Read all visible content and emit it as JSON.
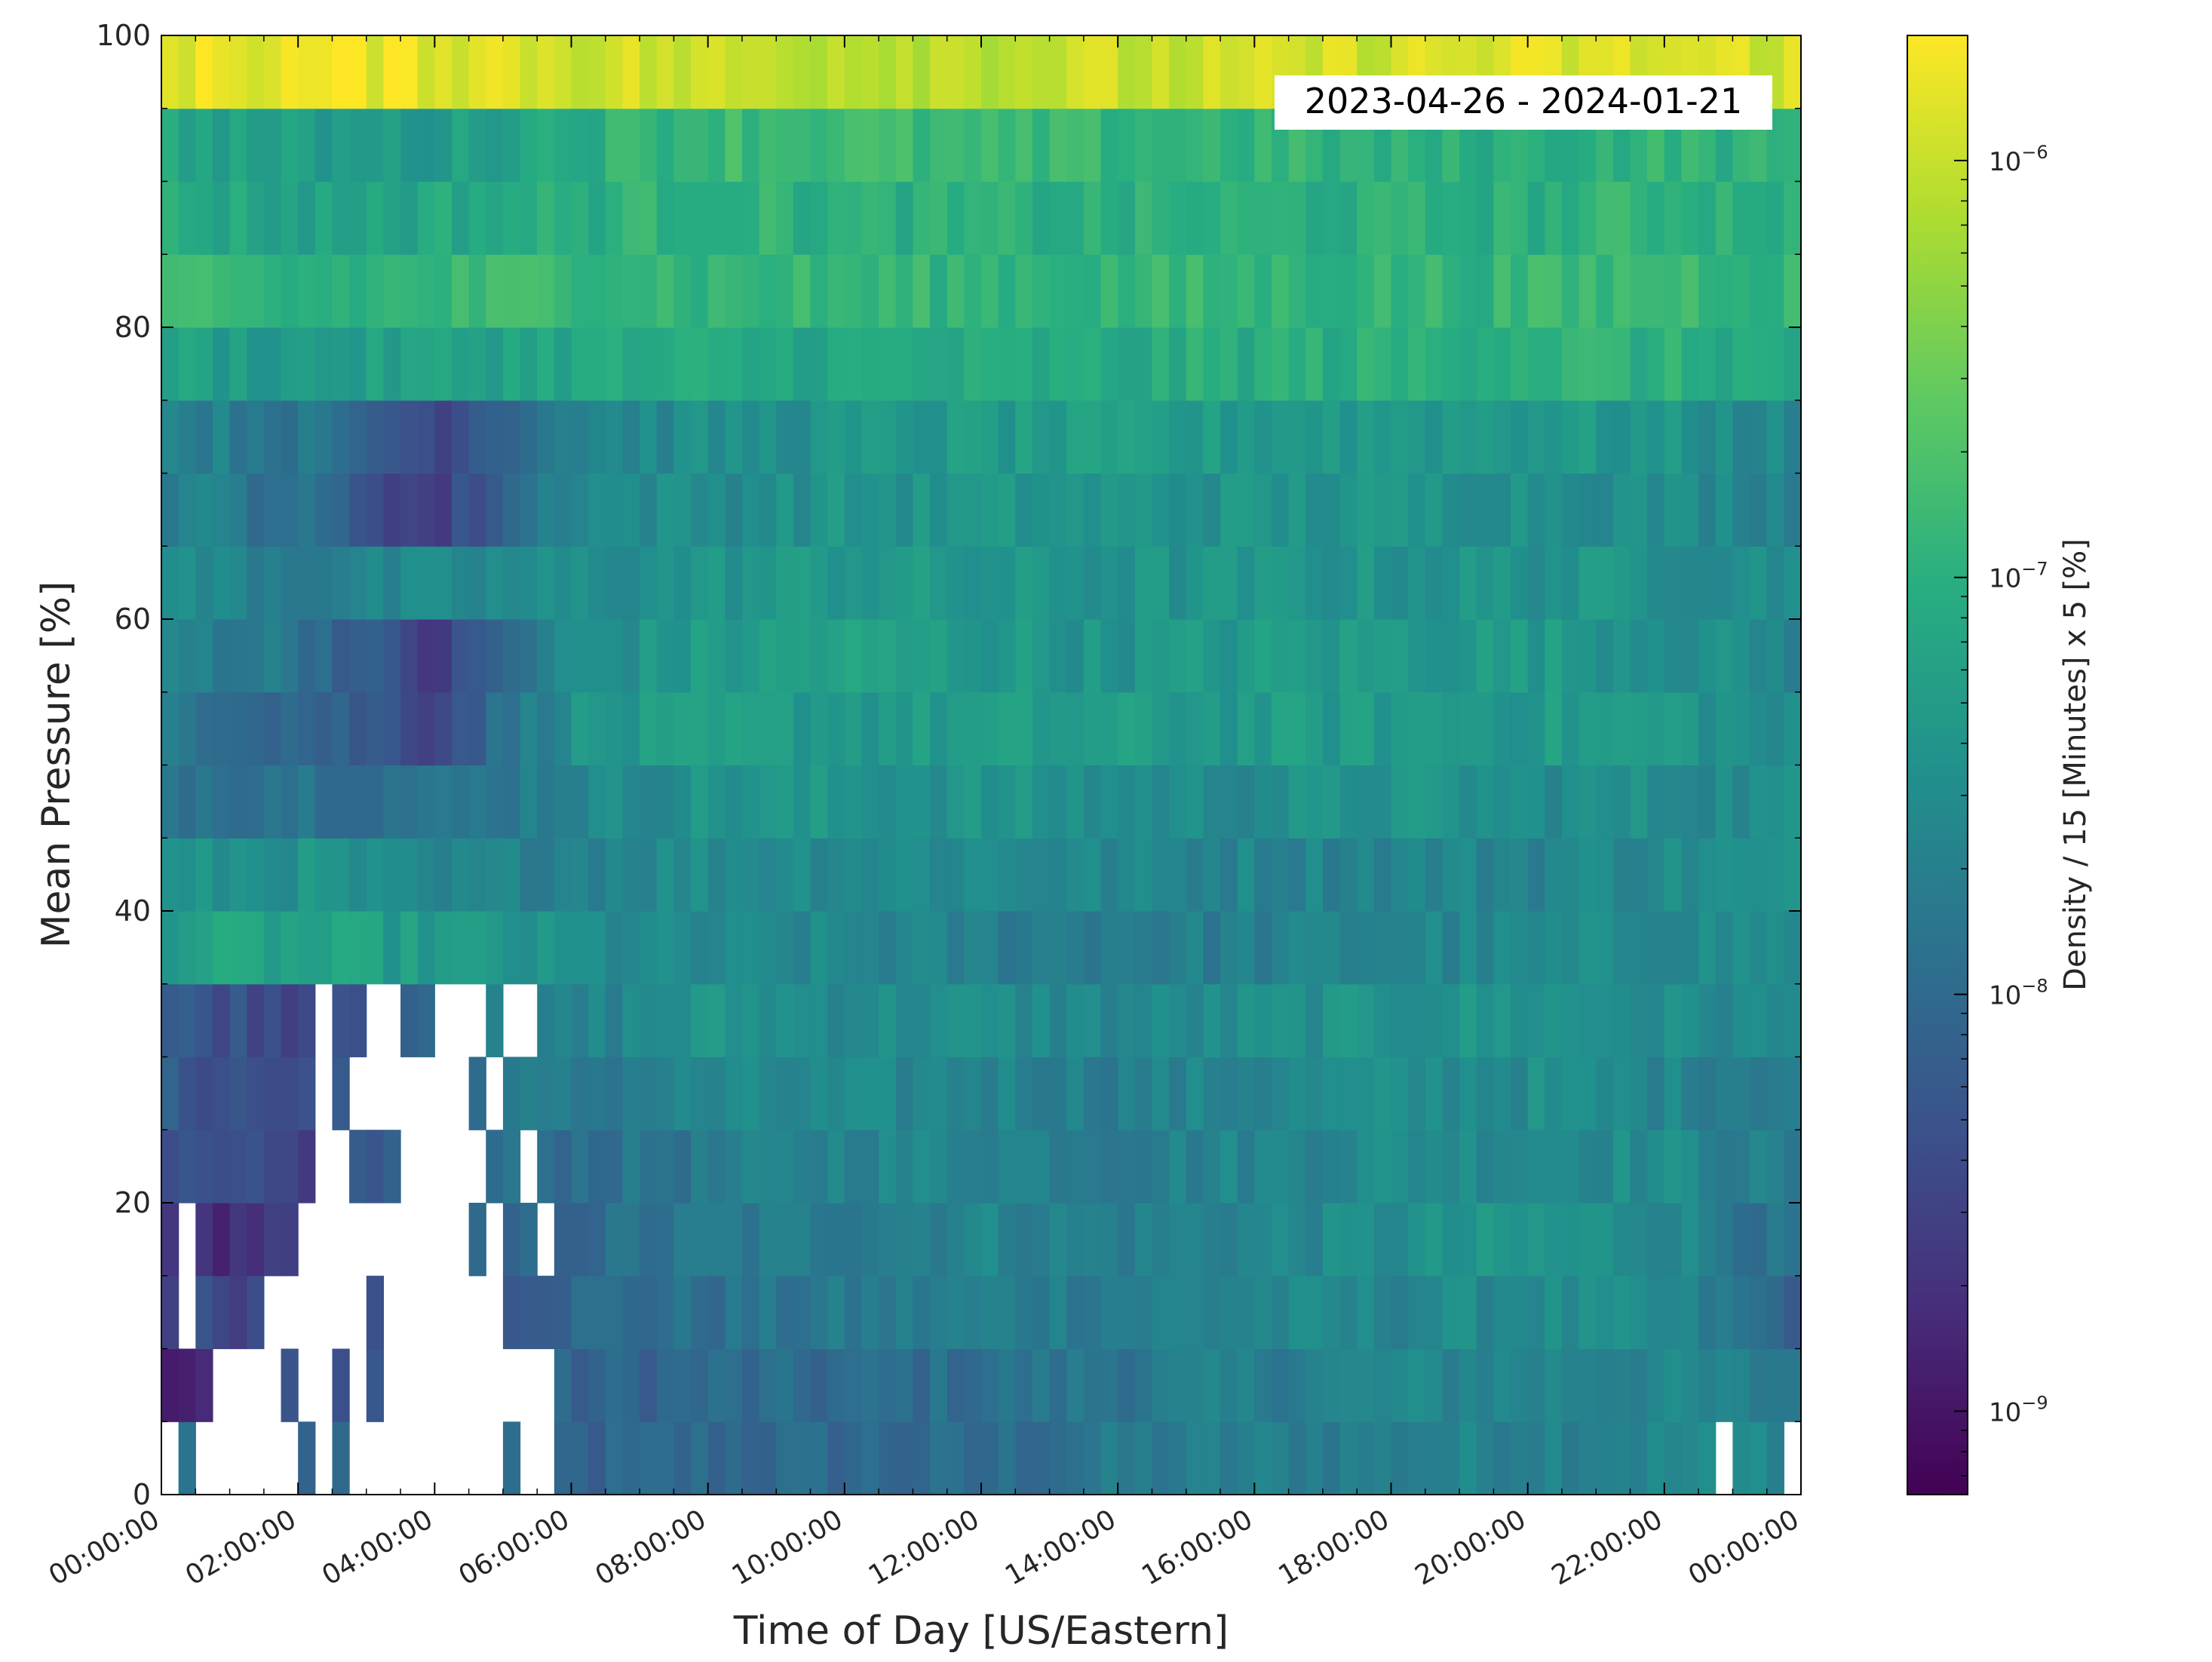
{
  "chart_data": {
    "type": "heatmap",
    "annotation": "2023-04-26 - 2024-01-21",
    "xlabel": "Time of Day [US/Eastern]",
    "ylabel": "Mean Pressure [%]",
    "x_tick_labels": [
      "00:00:00",
      "02:00:00",
      "04:00:00",
      "06:00:00",
      "08:00:00",
      "10:00:00",
      "12:00:00",
      "14:00:00",
      "16:00:00",
      "18:00:00",
      "20:00:00",
      "22:00:00",
      "00:00:00"
    ],
    "y_tick_labels": [
      "0",
      "20",
      "40",
      "60",
      "80",
      "100"
    ],
    "ylim": [
      0,
      100
    ],
    "xlim_hours": [
      0,
      24
    ],
    "x_bin_minutes": 15,
    "y_bin_size": 5,
    "colorbar": {
      "label": "Density / 15 [Minutes] x 5 [%]",
      "scale": "log",
      "colormap": "viridis",
      "vmin_exp": -9.2,
      "vmax_exp": -5.7,
      "tick_labels": [
        {
          "base": "10",
          "exp": "−9",
          "value_exp": -9
        },
        {
          "base": "10",
          "exp": "−8",
          "value_exp": -8
        },
        {
          "base": "10",
          "exp": "−7",
          "value_exp": -7
        },
        {
          "base": "10",
          "exp": "−6",
          "value_exp": -6
        }
      ]
    },
    "pressure_bins": [
      {
        "bin": "0-5",
        "level_exp": [
          -7.9,
          -8.0,
          -8.1,
          -8.1,
          -8.0,
          -8.0,
          -8.0,
          -7.8,
          -7.7,
          -7.7,
          -7.6,
          -7.6,
          -7.5
        ]
      },
      {
        "bin": "5-10",
        "level_exp": [
          -9.0,
          -8.3,
          -8.2,
          -8.1,
          -8.0,
          -8.0,
          -7.9,
          -7.8,
          -7.7,
          -7.6,
          -7.6,
          -7.6,
          -7.8
        ]
      },
      {
        "bin": "10-15",
        "level_exp": [
          -8.4,
          -8.4,
          -8.2,
          -8.0,
          -7.9,
          -7.8,
          -7.7,
          -7.7,
          -7.6,
          -7.6,
          -7.5,
          -7.6,
          -8.1
        ]
      },
      {
        "bin": "15-20",
        "level_exp": [
          -8.8,
          -8.6,
          -8.2,
          -8.0,
          -7.8,
          -7.7,
          -7.6,
          -7.7,
          -7.6,
          -7.5,
          -7.4,
          -7.5,
          -8.0
        ]
      },
      {
        "bin": "20-25",
        "level_exp": [
          -8.4,
          -8.5,
          -8.0,
          -7.9,
          -7.8,
          -7.6,
          -7.6,
          -7.7,
          -7.6,
          -7.5,
          -7.5,
          -7.5,
          -7.8
        ]
      },
      {
        "bin": "25-30",
        "level_exp": [
          -8.2,
          -8.4,
          -7.8,
          -7.8,
          -7.6,
          -7.6,
          -7.6,
          -7.7,
          -7.6,
          -7.5,
          -7.5,
          -7.6,
          -7.7
        ]
      },
      {
        "bin": "30-35",
        "level_exp": [
          -8.2,
          -8.4,
          -7.9,
          -7.7,
          -7.4,
          -7.5,
          -7.5,
          -7.6,
          -7.5,
          -7.4,
          -7.4,
          -7.5,
          -7.6
        ]
      },
      {
        "bin": "35-40",
        "level_exp": [
          -7.2,
          -7.2,
          -7.3,
          -7.5,
          -7.6,
          -7.6,
          -7.7,
          -7.7,
          -7.7,
          -7.6,
          -7.6,
          -7.5,
          -7.5
        ]
      },
      {
        "bin": "40-45",
        "level_exp": [
          -7.5,
          -7.4,
          -7.7,
          -7.6,
          -7.5,
          -7.5,
          -7.5,
          -7.6,
          -7.6,
          -7.6,
          -7.6,
          -7.5,
          -7.5
        ]
      },
      {
        "bin": "45-50",
        "level_exp": [
          -7.8,
          -7.8,
          -7.9,
          -7.6,
          -7.4,
          -7.4,
          -7.4,
          -7.5,
          -7.5,
          -7.4,
          -7.5,
          -7.5,
          -7.5
        ]
      },
      {
        "bin": "50-55",
        "level_exp": [
          -7.7,
          -8.0,
          -8.4,
          -7.4,
          -7.3,
          -7.3,
          -7.3,
          -7.3,
          -7.3,
          -7.3,
          -7.3,
          -7.3,
          -7.6
        ]
      },
      {
        "bin": "55-60",
        "level_exp": [
          -7.6,
          -7.8,
          -8.6,
          -7.5,
          -7.3,
          -7.2,
          -7.3,
          -7.4,
          -7.3,
          -7.3,
          -7.3,
          -7.4,
          -7.6
        ]
      },
      {
        "bin": "60-65",
        "level_exp": [
          -7.5,
          -7.7,
          -7.6,
          -7.5,
          -7.4,
          -7.3,
          -7.4,
          -7.4,
          -7.4,
          -7.4,
          -7.4,
          -7.4,
          -7.5
        ]
      },
      {
        "bin": "65-70",
        "level_exp": [
          -7.6,
          -7.9,
          -8.6,
          -7.5,
          -7.5,
          -7.4,
          -7.4,
          -7.4,
          -7.4,
          -7.4,
          -7.4,
          -7.5,
          -7.6
        ]
      },
      {
        "bin": "70-75",
        "level_exp": [
          -7.6,
          -7.8,
          -8.4,
          -7.6,
          -7.5,
          -7.4,
          -7.3,
          -7.3,
          -7.3,
          -7.3,
          -7.3,
          -7.4,
          -7.6
        ]
      },
      {
        "bin": "75-80",
        "level_exp": [
          -7.2,
          -7.3,
          -7.2,
          -7.1,
          -7.1,
          -7.1,
          -7.1,
          -7.1,
          -7.0,
          -7.0,
          -6.9,
          -7.0,
          -7.1
        ]
      },
      {
        "bin": "80-85",
        "level_exp": [
          -6.9,
          -7.0,
          -6.9,
          -6.8,
          -6.9,
          -6.9,
          -6.9,
          -6.9,
          -6.9,
          -6.9,
          -6.9,
          -6.8,
          -6.9
        ]
      },
      {
        "bin": "85-90",
        "level_exp": [
          -7.0,
          -7.2,
          -7.1,
          -7.0,
          -6.9,
          -7.0,
          -7.0,
          -7.0,
          -7.0,
          -7.0,
          -7.0,
          -6.9,
          -7.0
        ]
      },
      {
        "bin": "90-95",
        "level_exp": [
          -7.1,
          -7.3,
          -7.3,
          -7.0,
          -6.8,
          -6.8,
          -6.9,
          -6.9,
          -6.9,
          -7.0,
          -7.0,
          -6.9,
          -7.0
        ]
      },
      {
        "bin": "95-100",
        "level_exp": [
          -5.8,
          -5.8,
          -5.8,
          -5.9,
          -6.0,
          -6.0,
          -6.0,
          -6.0,
          -6.0,
          -5.9,
          -5.9,
          -5.9,
          -5.9
        ]
      }
    ],
    "empty_cells": [
      {
        "bin": "0-5",
        "ranges": [
          [
            0,
            0.25
          ],
          [
            0.5,
            2.0
          ],
          [
            2.25,
            2.5
          ],
          [
            2.75,
            5.0
          ],
          [
            5.25,
            5.75
          ],
          [
            22.75,
            23.0
          ],
          [
            23.75,
            24.0
          ]
        ]
      },
      {
        "bin": "5-10",
        "ranges": [
          [
            0.75,
            1.75
          ],
          [
            2.0,
            2.5
          ],
          [
            2.75,
            3.0
          ],
          [
            3.25,
            5.75
          ]
        ]
      },
      {
        "bin": "10-15",
        "ranges": [
          [
            0.25,
            0.5
          ],
          [
            1.5,
            1.75
          ],
          [
            1.75,
            3.0
          ],
          [
            3.25,
            5.0
          ]
        ]
      },
      {
        "bin": "15-20",
        "ranges": [
          [
            0.25,
            0.5
          ],
          [
            2.0,
            4.5
          ],
          [
            4.75,
            5.0
          ],
          [
            5.5,
            5.75
          ]
        ]
      },
      {
        "bin": "20-25",
        "ranges": [
          [
            2.25,
            2.75
          ],
          [
            3.5,
            4.75
          ],
          [
            5.25,
            5.5
          ]
        ]
      },
      {
        "bin": "25-30",
        "ranges": [
          [
            2.25,
            2.5
          ],
          [
            2.75,
            4.5
          ],
          [
            4.75,
            4.95
          ]
        ]
      },
      {
        "bin": "30-35",
        "ranges": [
          [
            2.25,
            2.5
          ],
          [
            3.0,
            3.5
          ],
          [
            4.0,
            4.75
          ],
          [
            5.0,
            5.5
          ]
        ]
      }
    ]
  }
}
